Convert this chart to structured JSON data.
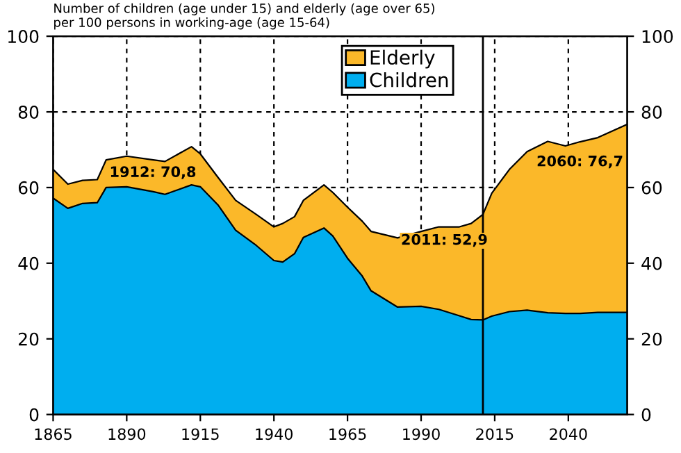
{
  "chart_data": {
    "type": "area",
    "stacked": true,
    "title": "Number of children (age under 15) and elderly (age over 65)\nper 100 persons in working-age (age 15-64)",
    "x": [
      1865,
      1870,
      1875,
      1880,
      1883,
      1890,
      1899,
      1903,
      1912,
      1915,
      1921,
      1927,
      1934,
      1940,
      1943,
      1947,
      1950,
      1957,
      1960,
      1965,
      1970,
      1973,
      1982,
      1990,
      1996,
      2003,
      2007,
      2011,
      2014,
      2020,
      2026,
      2033,
      2039,
      2044,
      2050,
      2060
    ],
    "series": [
      {
        "name": "Children",
        "color": "#00aeef",
        "values": [
          57.2,
          54.5,
          55.8,
          56.0,
          60.0,
          60.2,
          58.9,
          58.2,
          60.7,
          60.2,
          55.4,
          48.7,
          44.7,
          40.7,
          40.3,
          42.5,
          46.8,
          49.3,
          47.2,
          41.3,
          36.6,
          32.7,
          28.4,
          28.6,
          27.8,
          26.1,
          25.1,
          25.0,
          26.0,
          27.2,
          27.6,
          26.9,
          26.7,
          26.7,
          27.0,
          27.0
        ]
      },
      {
        "name": "Elderly",
        "color": "#fbb829",
        "values": [
          7.6,
          6.4,
          6.1,
          6.1,
          7.3,
          8.1,
          8.4,
          8.7,
          10.1,
          8.7,
          7.3,
          7.9,
          8.2,
          8.9,
          10.2,
          9.8,
          9.8,
          11.4,
          11.5,
          13.5,
          14.5,
          15.7,
          18.3,
          19.8,
          21.8,
          23.5,
          25.4,
          27.9,
          32.5,
          37.6,
          41.9,
          45.3,
          44.3,
          45.4,
          46.2,
          49.7
        ]
      }
    ],
    "xlim": [
      1865,
      2060
    ],
    "xticks": [
      1865,
      1890,
      1915,
      1940,
      1965,
      1990,
      2015,
      2040
    ],
    "ylim": [
      0,
      100
    ],
    "yticks": [
      0,
      20,
      40,
      60,
      80,
      100
    ],
    "y2lim": [
      0,
      100
    ],
    "y2ticks": [
      0,
      20,
      40,
      60,
      80,
      100
    ],
    "grid": true,
    "legend": "top",
    "ref_lines": [
      {
        "axis": "x",
        "value": 2011,
        "color": "#000000",
        "line_style": "solid"
      }
    ],
    "annotations": [
      {
        "text": "1912: 70,8",
        "x": 1912,
        "y": 70.8
      },
      {
        "text": "2011: 52,9",
        "x": 2011,
        "y": 52.9
      },
      {
        "text": "2060: 76,7",
        "x": 2060,
        "y": 76.7
      }
    ]
  }
}
